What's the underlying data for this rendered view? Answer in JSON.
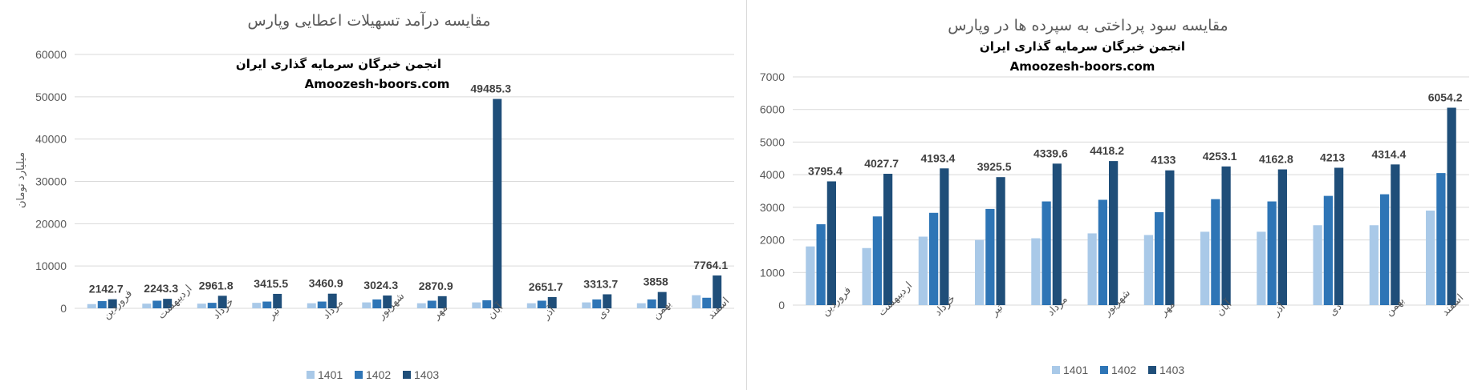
{
  "colors": {
    "s1401": "#a9c9e8",
    "s1402": "#2e75b6",
    "s1403": "#1f4e79",
    "grid": "#d9d9d9",
    "text": "#595959"
  },
  "chart_data": [
    {
      "type": "bar",
      "title": "مقایسه درآمد تسهیلات اعطایی وپارس",
      "watermark": [
        "انجمن خبرگان سرمایه گذاری ایران",
        "Amoozesh-boors.com"
      ],
      "ylabel": "میلیارد تومان",
      "xlabel": "",
      "ylim": [
        0,
        60000
      ],
      "yticks": [
        0,
        10000,
        20000,
        30000,
        40000,
        50000,
        60000
      ],
      "grid": true,
      "legend_position": "bottom",
      "categories": [
        "فروردین",
        "اردیبهشت",
        "خرداد",
        "تیر",
        "مرداد",
        "شهریور",
        "مهر",
        "آبان",
        "آذر",
        "دی",
        "بهمن",
        "اسفند"
      ],
      "series": [
        {
          "name": "1401",
          "values": [
            1000,
            1100,
            1100,
            1300,
            1200,
            1400,
            1200,
            1400,
            1200,
            1400,
            1200,
            3100
          ]
        },
        {
          "name": "1402",
          "values": [
            1700,
            1800,
            1300,
            1600,
            1600,
            2100,
            1800,
            1900,
            1800,
            2100,
            2100,
            2500
          ]
        },
        {
          "name": "1403",
          "values": [
            2142.7,
            2243.3,
            2961.8,
            3415.5,
            3460.9,
            3024.3,
            2870.9,
            49485.3,
            2651.7,
            3313.7,
            3858,
            7764.1
          ]
        }
      ],
      "data_labels": [
        "2142.7",
        "2243.3",
        "2961.8",
        "3415.5",
        "3460.9",
        "3024.3",
        "2870.9",
        "49485.3",
        "2651.7",
        "3313.7",
        "3858",
        "7764.1"
      ]
    },
    {
      "type": "bar",
      "title": "مقایسه سود پرداختی به سپرده ها در وپارس",
      "watermark": [
        "انجمن خبرگان سرمایه گذاری ایران",
        "Amoozesh-boors.com"
      ],
      "ylabel": "",
      "xlabel": "",
      "ylim": [
        0,
        7000
      ],
      "yticks": [
        0,
        1000,
        2000,
        3000,
        4000,
        5000,
        6000,
        7000
      ],
      "grid": true,
      "legend_position": "bottom",
      "categories": [
        "فروردین",
        "اردیبهشت",
        "خرداد",
        "تیر",
        "مرداد",
        "شهریور",
        "مهر",
        "آبان",
        "آذر",
        "دی",
        "بهمن",
        "اسفند"
      ],
      "series": [
        {
          "name": "1401",
          "values": [
            1800,
            1750,
            2100,
            2000,
            2050,
            2200,
            2150,
            2250,
            2250,
            2450,
            2450,
            2900
          ]
        },
        {
          "name": "1402",
          "values": [
            2480,
            2720,
            2830,
            2950,
            3180,
            3230,
            2850,
            3250,
            3180,
            3350,
            3400,
            4050
          ]
        },
        {
          "name": "1403",
          "values": [
            3795.4,
            4027.7,
            4193.4,
            3925.5,
            4339.6,
            4418.2,
            4133,
            4253.1,
            4162.8,
            4213,
            4314.4,
            6054.2
          ]
        }
      ],
      "data_labels": [
        "3795.4",
        "4027.7",
        "4193.4",
        "3925.5",
        "4339.6",
        "4418.2",
        "4133",
        "4253.1",
        "4162.8",
        "4213",
        "4314.4",
        "6054.2"
      ]
    }
  ]
}
